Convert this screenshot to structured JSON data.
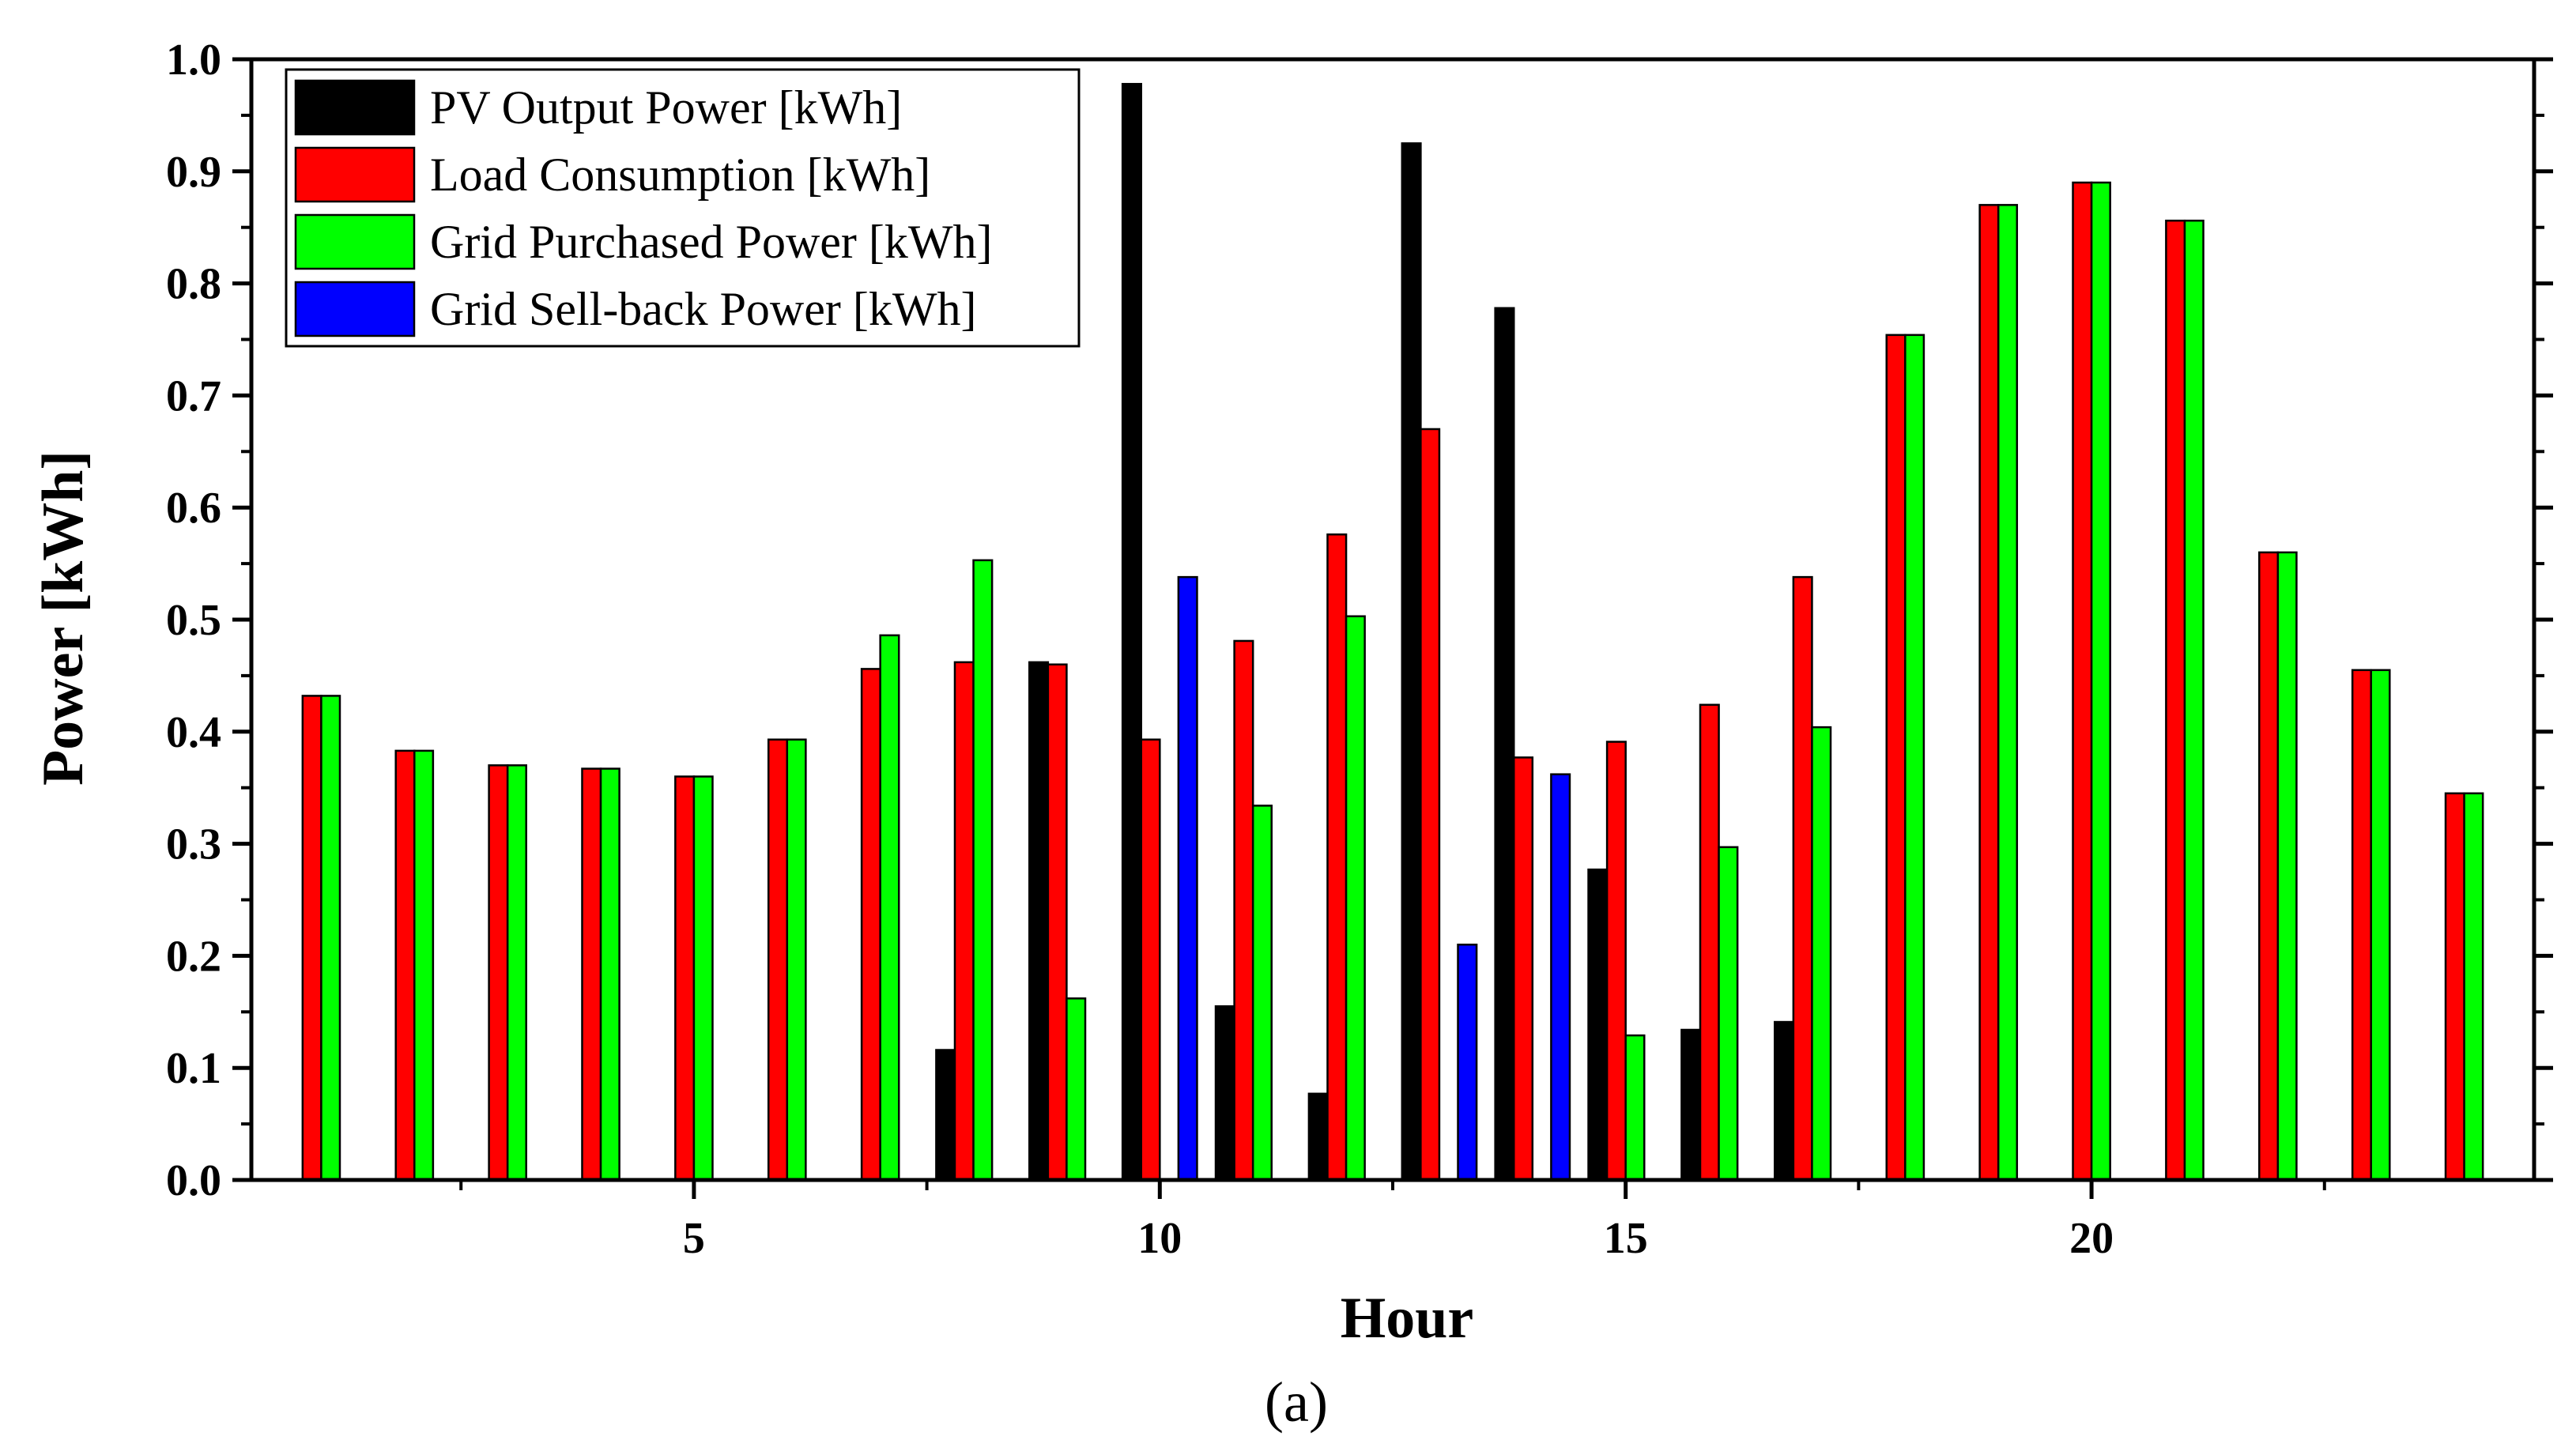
{
  "chart_data": {
    "type": "bar",
    "title": "",
    "xlabel": "Hour",
    "ylabel": "Power [kWh]",
    "caption": "(a)",
    "xlim": [
      0.25,
      24.75
    ],
    "ylim": [
      0,
      1.0
    ],
    "x_ticks": [
      5,
      10,
      15,
      20
    ],
    "x_tick_labels": [
      "5",
      "10",
      "15",
      "20"
    ],
    "y_ticks": [
      0,
      0.1,
      0.2,
      0.3,
      0.4,
      0.5,
      0.6,
      0.7,
      0.8,
      0.9,
      1.0
    ],
    "y_tick_labels": [
      "0.0",
      "0.1",
      "0.2",
      "0.3",
      "0.4",
      "0.5",
      "0.6",
      "0.7",
      "0.8",
      "0.9",
      "1.0"
    ],
    "grid": false,
    "legend_position": "top-left",
    "categories": [
      1,
      2,
      3,
      4,
      5,
      6,
      7,
      8,
      9,
      10,
      11,
      12,
      13,
      14,
      15,
      16,
      17,
      18,
      19,
      20,
      21,
      22,
      23,
      24
    ],
    "series": [
      {
        "name": "PV Output Power [kWh]",
        "color": "#000000",
        "values": [
          0,
          0,
          0,
          0,
          0,
          0,
          0,
          0.116,
          0.462,
          0.978,
          0.155,
          0.077,
          0.925,
          0.778,
          0.277,
          0.134,
          0.141,
          0,
          0,
          0,
          0,
          0,
          0,
          0
        ]
      },
      {
        "name": "Load Consumption [kWh]",
        "color": "#ff0000",
        "values": [
          0.432,
          0.383,
          0.37,
          0.367,
          0.36,
          0.393,
          0.456,
          0.462,
          0.46,
          0.393,
          0.481,
          0.576,
          0.67,
          0.377,
          0.391,
          0.424,
          0.538,
          0.754,
          0.87,
          0.89,
          0.856,
          0.56,
          0.455,
          0.345
        ]
      },
      {
        "name": "Grid Purchased Power [kWh]",
        "color": "#00ff00",
        "values": [
          0.432,
          0.383,
          0.37,
          0.367,
          0.36,
          0.393,
          0.486,
          0.553,
          0.162,
          0,
          0.334,
          0.503,
          0,
          0,
          0.129,
          0.297,
          0.404,
          0.754,
          0.87,
          0.89,
          0.856,
          0.56,
          0.455,
          0.345
        ]
      },
      {
        "name": "Grid Sell-back Power [kWh]",
        "color": "#0000ff",
        "values": [
          0,
          0,
          0,
          0,
          0,
          0,
          0,
          0,
          0,
          0.538,
          0,
          0,
          0.21,
          0.362,
          0,
          0,
          0,
          0,
          0,
          0,
          0,
          0,
          0,
          0
        ]
      }
    ]
  }
}
